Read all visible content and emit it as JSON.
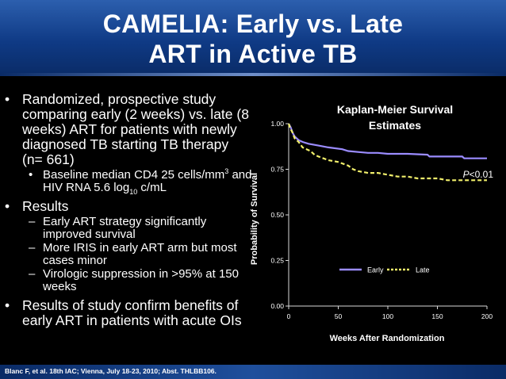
{
  "title": {
    "line1": "CAMELIA: Early vs. Late",
    "line2": "ART in Active TB"
  },
  "bullets": {
    "b1": "Randomized, prospective study comparing early (2 weeks) vs. late (8 weeks) ART for patients with newly diagnosed TB starting TB therapy (n= 661)",
    "b1_sub1_pre": "Baseline median CD4 25 cells/mm",
    "b1_sub1_sup": "3",
    "b1_sub1_mid": "and HIV RNA 5.6 log",
    "b1_sub1_sub": "10",
    "b1_sub1_post": " c/mL",
    "b2": "Results",
    "b2_sub1": "Early ART strategy significantly improved survival",
    "b2_sub2": "More IRIS in early ART arm but most cases minor",
    "b2_sub3": "Virologic suppression in >95% at 150 weeks",
    "b3": "Results of study confirm benefits of early ART in patients with acute OIs",
    "marker_main": "•",
    "marker_sub1": "•",
    "marker_sub2": "–"
  },
  "footer": {
    "citation": "Blanc F, et al. 18th IAC; Vienna, July 18-23, 2010; Abst. THLBB106."
  },
  "chart_data": {
    "type": "line",
    "title_line1": "Kaplan-Meier Survival",
    "title_line2": "Estimates",
    "xlabel": "Weeks After Randomization",
    "ylabel": "Probability of Survival",
    "xlim": [
      0,
      200
    ],
    "ylim": [
      0,
      1
    ],
    "xticks": [
      "0",
      "50",
      "100",
      "150",
      "200"
    ],
    "yticks": [
      "0.00",
      "0.25",
      "0.50",
      "0.75",
      "1.00"
    ],
    "annotation_italic": "P",
    "annotation_rest": "<0.01",
    "series": [
      {
        "name": "Early",
        "color": "#9b8cff",
        "x": [
          0,
          2,
          4,
          6,
          8,
          10,
          14,
          20,
          30,
          40,
          54,
          60,
          70,
          80,
          90,
          100,
          120,
          140,
          142,
          160,
          175,
          177,
          200
        ],
        "y": [
          1.0,
          0.98,
          0.95,
          0.93,
          0.92,
          0.91,
          0.9,
          0.89,
          0.88,
          0.87,
          0.86,
          0.85,
          0.845,
          0.84,
          0.84,
          0.835,
          0.835,
          0.83,
          0.82,
          0.82,
          0.82,
          0.81,
          0.81
        ]
      },
      {
        "name": "Late",
        "color": "#f1ef6b",
        "x": [
          0,
          2,
          4,
          6,
          8,
          10,
          14,
          18,
          22,
          26,
          30,
          40,
          50,
          60,
          65,
          70,
          80,
          90,
          100,
          110,
          120,
          130,
          140,
          150,
          160,
          170,
          180,
          190,
          200
        ],
        "y": [
          1.0,
          0.97,
          0.95,
          0.92,
          0.91,
          0.9,
          0.87,
          0.86,
          0.85,
          0.83,
          0.82,
          0.8,
          0.79,
          0.77,
          0.75,
          0.74,
          0.73,
          0.73,
          0.72,
          0.71,
          0.71,
          0.7,
          0.7,
          0.7,
          0.69,
          0.69,
          0.69,
          0.69,
          0.69
        ]
      }
    ]
  }
}
